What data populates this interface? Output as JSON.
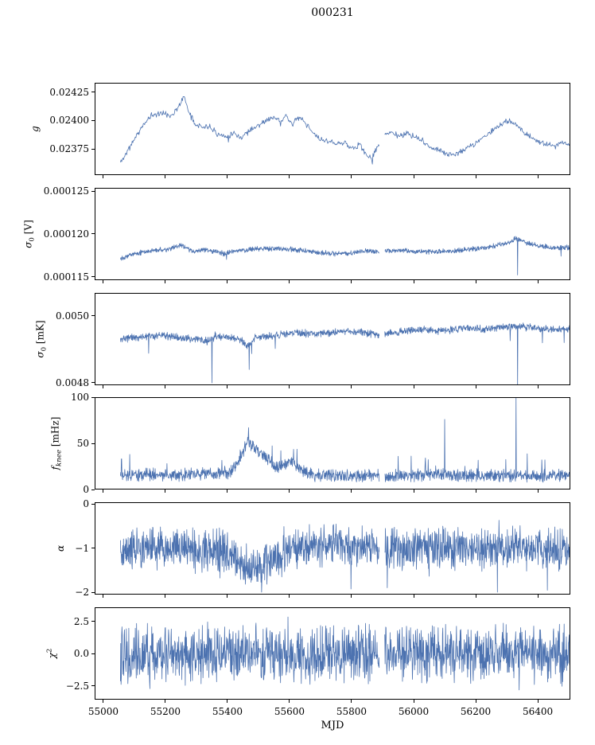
{
  "figure": {
    "background": "#ffffff",
    "line_color": "#4c72b0",
    "axis_color": "#000000"
  },
  "chart_data": {
    "type": "line",
    "title": "000231",
    "xlabel": "MJD",
    "grid": false,
    "legend": false,
    "xlim": [
      54972,
      56505
    ],
    "x_data_range": [
      55055,
      56503
    ],
    "xticks": [
      55000,
      55200,
      55400,
      55600,
      55800,
      56000,
      56200,
      56400
    ],
    "xtick_labels": [
      "55000",
      "55200",
      "55400",
      "55600",
      "55800",
      "56000",
      "56200",
      "56400"
    ],
    "gaps": [
      [
        55890,
        55906
      ]
    ],
    "panels": [
      {
        "id": "g",
        "ylabel": "g",
        "ylabel_parts": [
          {
            "t": "g",
            "s": "i"
          }
        ],
        "ylim": [
          0.023518,
          0.024334
        ],
        "yticks": [
          0.02375,
          0.024,
          0.02425
        ],
        "ytick_labels": [
          "0.02375",
          "0.02400",
          "0.02425"
        ],
        "step": 2,
        "seed": 11,
        "noise": 3e-05,
        "rare_prob": 0.008,
        "rare_amp": 6e-05,
        "rare_sign": -1,
        "spikes": [
          [
            55867,
            0.023615
          ]
        ],
        "trend_x": [
          55055,
          55080,
          55110,
          55150,
          55185,
          55215,
          55245,
          55258,
          55275,
          55295,
          55320,
          55345,
          55370,
          55395,
          55420,
          55445,
          55470,
          55495,
          55520,
          55545,
          55570,
          55590,
          55610,
          55630,
          55650,
          55675,
          55700,
          55725,
          55750,
          55775,
          55800,
          55825,
          55845,
          55865,
          55885,
          55905,
          55930,
          55955,
          55980,
          56005,
          56030,
          56055,
          56080,
          56105,
          56130,
          56155,
          56180,
          56205,
          56230,
          56255,
          56280,
          56305,
          56330,
          56355,
          56380,
          56405,
          56430,
          56455,
          56480,
          56503
        ],
        "trend_y": [
          0.02363,
          0.02374,
          0.02388,
          0.02404,
          0.02407,
          0.02404,
          0.02413,
          0.02422,
          0.02409,
          0.02398,
          0.02394,
          0.02395,
          0.02388,
          0.02386,
          0.02389,
          0.02385,
          0.02392,
          0.02395,
          0.02399,
          0.02403,
          0.024,
          0.02404,
          0.02397,
          0.02403,
          0.02398,
          0.02389,
          0.02383,
          0.02382,
          0.02379,
          0.02381,
          0.02375,
          0.02379,
          0.02371,
          0.02366,
          0.02378,
          0.02387,
          0.0239,
          0.02386,
          0.02389,
          0.02385,
          0.02382,
          0.02376,
          0.02374,
          0.02371,
          0.0237,
          0.02373,
          0.02377,
          0.02381,
          0.02386,
          0.02391,
          0.02396,
          0.024,
          0.02396,
          0.0239,
          0.02385,
          0.02381,
          0.02379,
          0.02377,
          0.02381,
          0.02379
        ]
      },
      {
        "id": "sigma0-v",
        "ylabel": "σ₀ [V]",
        "ylabel_parts": [
          {
            "t": "σ",
            "s": "i"
          },
          {
            "t": "0",
            "s": "sub"
          },
          {
            "t": " [V]",
            "s": "n"
          }
        ],
        "ylim": [
          0.0001146,
          0.0001254
        ],
        "yticks": [
          0.000115,
          0.00012,
          0.000125
        ],
        "ytick_labels": [
          "0.000115",
          "0.000120",
          "0.000125"
        ],
        "step": 1,
        "seed": 22,
        "noise": 3.5e-07,
        "rare_prob": 0.004,
        "rare_amp": 1.2e-06,
        "rare_sign": -1,
        "spikes": [
          [
            56335,
            0.0001152
          ]
        ],
        "trend_x": [
          55055,
          55090,
          55130,
          55170,
          55210,
          55250,
          55270,
          55290,
          55340,
          55390,
          55420,
          55460,
          55500,
          55550,
          55600,
          55650,
          55700,
          55750,
          55800,
          55850,
          55900,
          55950,
          56000,
          56050,
          56100,
          56150,
          56200,
          56250,
          56300,
          56330,
          56360,
          56400,
          56450,
          56503
        ],
        "trend_y": [
          0.0001172,
          0.0001176,
          0.0001179,
          0.0001181,
          0.0001182,
          0.0001187,
          0.0001183,
          0.000118,
          0.0001181,
          0.0001177,
          0.000118,
          0.0001181,
          0.0001183,
          0.0001183,
          0.0001182,
          0.000118,
          0.0001178,
          0.0001177,
          0.0001178,
          0.000118,
          0.000118,
          0.0001181,
          0.000118,
          0.0001179,
          0.000118,
          0.0001181,
          0.0001183,
          0.0001185,
          0.0001189,
          0.0001195,
          0.000119,
          0.0001186,
          0.0001184,
          0.0001184
        ]
      },
      {
        "id": "sigma0-mk",
        "ylabel": "σ₀ [mK]",
        "ylabel_parts": [
          {
            "t": "σ",
            "s": "i"
          },
          {
            "t": "0",
            "s": "sub"
          },
          {
            "t": " [mK]",
            "s": "n"
          }
        ],
        "ylim": [
          0.004793,
          0.005069
        ],
        "yticks": [
          0.0048,
          0.005
        ],
        "ytick_labels": [
          "0.0048",
          "0.0050"
        ],
        "step": 1,
        "seed": 33,
        "noise": 1.3e-05,
        "rare_prob": 0.005,
        "rare_amp": 5e-05,
        "rare_sign": -1,
        "spikes": [
          [
            55350,
            0.0048
          ],
          [
            55470,
            0.00484
          ],
          [
            56335,
            0.00479
          ]
        ],
        "trend_x": [
          55055,
          55100,
          55150,
          55200,
          55250,
          55300,
          55340,
          55360,
          55400,
          55440,
          55465,
          55490,
          55530,
          55580,
          55630,
          55680,
          55730,
          55780,
          55830,
          55880,
          55930,
          55980,
          56030,
          56080,
          56130,
          56180,
          56230,
          56280,
          56330,
          56380,
          56430,
          56503
        ],
        "trend_y": [
          0.00493,
          0.004935,
          0.00494,
          0.00494,
          0.004935,
          0.00493,
          0.004925,
          0.00494,
          0.004935,
          0.00493,
          0.00491,
          0.004935,
          0.00494,
          0.004945,
          0.00495,
          0.004945,
          0.00495,
          0.004955,
          0.00495,
          0.004945,
          0.00495,
          0.004955,
          0.00496,
          0.004955,
          0.00496,
          0.004965,
          0.00496,
          0.004965,
          0.00497,
          0.004965,
          0.00496,
          0.00496
        ]
      },
      {
        "id": "fknee",
        "ylabel": "fₖₙₑₑ [mHz]",
        "ylabel_parts": [
          {
            "t": "f",
            "s": "i"
          },
          {
            "t": "knee",
            "s": "subi"
          },
          {
            "t": " [mHz]",
            "s": "n"
          }
        ],
        "ylim": [
          0,
          100
        ],
        "yticks": [
          0,
          50,
          100
        ],
        "ytick_labels": [
          "0",
          "50",
          "100"
        ],
        "step": 1,
        "seed": 44,
        "noise": 8,
        "rare_prob": 0.015,
        "rare_amp": 18,
        "rare_sign": 1,
        "spikes": [
          [
            55085,
            38
          ],
          [
            55468,
            67
          ],
          [
            55950,
            36
          ],
          [
            56100,
            76
          ],
          [
            56330,
            100
          ]
        ],
        "trend_x": [
          55055,
          55150,
          55250,
          55350,
          55400,
          55425,
          55445,
          55465,
          55480,
          55500,
          55520,
          55545,
          55565,
          55585,
          55605,
          55625,
          55645,
          55680,
          55750,
          55850,
          55950,
          56050,
          56150,
          56250,
          56350,
          56450,
          56503
        ],
        "trend_y": [
          15,
          16,
          16,
          17,
          18,
          24,
          38,
          52,
          48,
          42,
          36,
          28,
          24,
          27,
          31,
          26,
          19,
          16,
          15,
          15,
          15,
          16,
          15,
          15,
          15,
          15,
          15
        ]
      },
      {
        "id": "alpha",
        "ylabel": "α",
        "ylabel_parts": [
          {
            "t": "α",
            "s": "i"
          }
        ],
        "ylim": [
          -2.054,
          0.036
        ],
        "yticks": [
          -2,
          -1,
          0
        ],
        "ytick_labels": [
          "−2",
          "−1",
          "0"
        ],
        "step": 1,
        "seed": 55,
        "noise": 0.55,
        "rare_prob": 0.02,
        "rare_amp": 0.5,
        "rare_sign": 0,
        "spikes": [
          [
            55510,
            -2.0
          ],
          [
            55915,
            -1.9
          ],
          [
            56270,
            -2.0
          ]
        ],
        "trend_x": [
          55055,
          55250,
          55330,
          55380,
          55420,
          55450,
          55490,
          55530,
          55570,
          55610,
          55650,
          55750,
          55850,
          55950,
          56050,
          56150,
          56250,
          56350,
          56450,
          56503
        ],
        "trend_y": [
          -1.0,
          -1.0,
          -1.08,
          -1.02,
          -1.2,
          -1.38,
          -1.42,
          -1.35,
          -1.2,
          -1.05,
          -0.97,
          -0.97,
          -1.0,
          -1.0,
          -1.0,
          -1.02,
          -1.0,
          -1.0,
          -1.0,
          -1.0
        ]
      },
      {
        "id": "chi2",
        "ylabel": "χ²",
        "ylabel_parts": [
          {
            "t": "χ",
            "s": "i"
          },
          {
            "t": "2",
            "s": "sup"
          }
        ],
        "ylim": [
          -3.55,
          3.6
        ],
        "yticks": [
          -2.5,
          0,
          2.5
        ],
        "ytick_labels": [
          "−2.5",
          "0.0",
          "2.5"
        ],
        "step": 1,
        "seed": 66,
        "noise": 2.5,
        "rare_prob": 0.012,
        "rare_amp": 0.9,
        "rare_sign": 0,
        "spikes": [
          [
            55150,
            -2.7
          ],
          [
            55595,
            2.85
          ],
          [
            56340,
            -2.8
          ]
        ],
        "trend_x": [
          55055,
          56503
        ],
        "trend_y": [
          0,
          0
        ]
      }
    ]
  }
}
